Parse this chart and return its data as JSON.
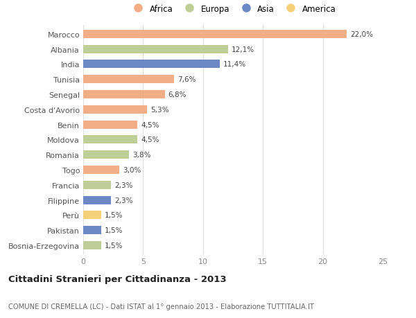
{
  "categories": [
    "Marocco",
    "Albania",
    "India",
    "Tunisia",
    "Senegal",
    "Costa d'Avorio",
    "Benin",
    "Moldova",
    "Romania",
    "Togo",
    "Francia",
    "Filippine",
    "Perù",
    "Pakistan",
    "Bosnia-Erzegovina"
  ],
  "values": [
    22.0,
    12.1,
    11.4,
    7.6,
    6.8,
    5.3,
    4.5,
    4.5,
    3.8,
    3.0,
    2.3,
    2.3,
    1.5,
    1.5,
    1.5
  ],
  "labels": [
    "22,0%",
    "12,1%",
    "11,4%",
    "7,6%",
    "6,8%",
    "5,3%",
    "4,5%",
    "4,5%",
    "3,8%",
    "3,0%",
    "2,3%",
    "2,3%",
    "1,5%",
    "1,5%",
    "1,5%"
  ],
  "continents": [
    "Africa",
    "Europa",
    "Asia",
    "Africa",
    "Africa",
    "Africa",
    "Africa",
    "Europa",
    "Europa",
    "Africa",
    "Europa",
    "Asia",
    "America",
    "Asia",
    "Europa"
  ],
  "continent_colors": {
    "Africa": "#F2AE87",
    "Europa": "#BDCF96",
    "Asia": "#6B88C4",
    "America": "#F5D27A"
  },
  "legend_order": [
    "Africa",
    "Europa",
    "Asia",
    "America"
  ],
  "title": "Cittadini Stranieri per Cittadinanza - 2013",
  "subtitle": "COMUNE DI CREMELLA (LC) - Dati ISTAT al 1° gennaio 2013 - Elaborazione TUTTITALIA.IT",
  "xlim": [
    0,
    25
  ],
  "xticks": [
    0,
    5,
    10,
    15,
    20,
    25
  ],
  "background_color": "#ffffff",
  "grid_color": "#e0e0e0",
  "bar_height": 0.55
}
